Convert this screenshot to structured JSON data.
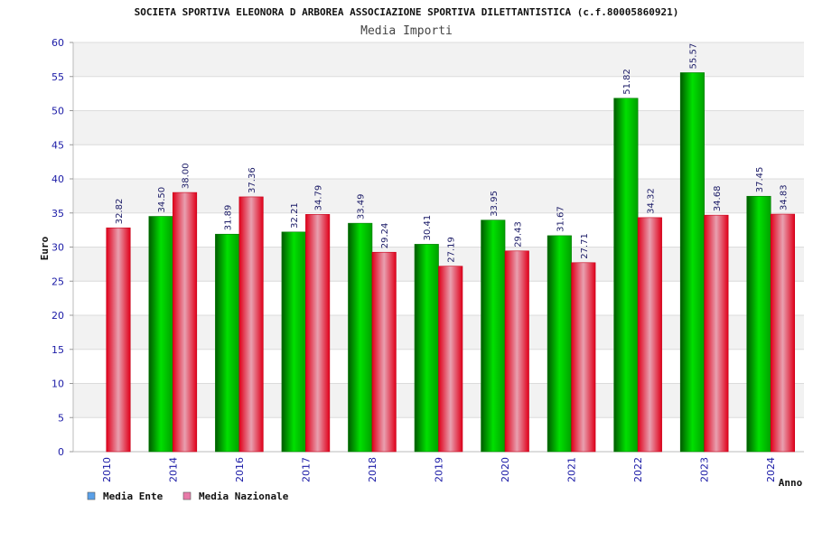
{
  "chart_data": {
    "type": "bar",
    "title": "SOCIETA SPORTIVA ELEONORA D ARBOREA ASSOCIAZIONE SPORTIVA DILETTANTISTICA (c.f.80005860921)",
    "subtitle": "Media Importi",
    "xlabel": "Anno",
    "ylabel": "Euro",
    "ylim": [
      0,
      60
    ],
    "yticks": [
      0,
      5,
      10,
      15,
      20,
      25,
      30,
      35,
      40,
      45,
      50,
      55,
      60
    ],
    "grid": true,
    "legend_position": "bottom-left",
    "categories": [
      "2010",
      "2014",
      "2016",
      "2017",
      "2018",
      "2019",
      "2020",
      "2021",
      "2022",
      "2023",
      "2024"
    ],
    "series": [
      {
        "name": "Media Ente",
        "color": "#00b000",
        "legend_color": "#5aa0e8",
        "values": [
          null,
          34.5,
          31.89,
          32.21,
          33.49,
          30.41,
          33.95,
          31.67,
          51.82,
          55.57,
          37.45
        ],
        "labels": [
          "",
          "34.50",
          "31.89",
          "32.21",
          "33.49",
          "30.41",
          "33.95",
          "31.67",
          "51.82",
          "55.57",
          "37.45"
        ]
      },
      {
        "name": "Media Nazionale",
        "color": "#e8001c",
        "legend_color": "#e87aa8",
        "values": [
          32.82,
          38.0,
          37.36,
          34.79,
          29.24,
          27.19,
          29.43,
          27.71,
          34.32,
          34.68,
          34.83
        ],
        "labels": [
          "32.82",
          "38.00",
          "37.36",
          "34.79",
          "29.24",
          "27.19",
          "29.43",
          "27.71",
          "34.32",
          "34.68",
          "34.83"
        ]
      }
    ]
  }
}
